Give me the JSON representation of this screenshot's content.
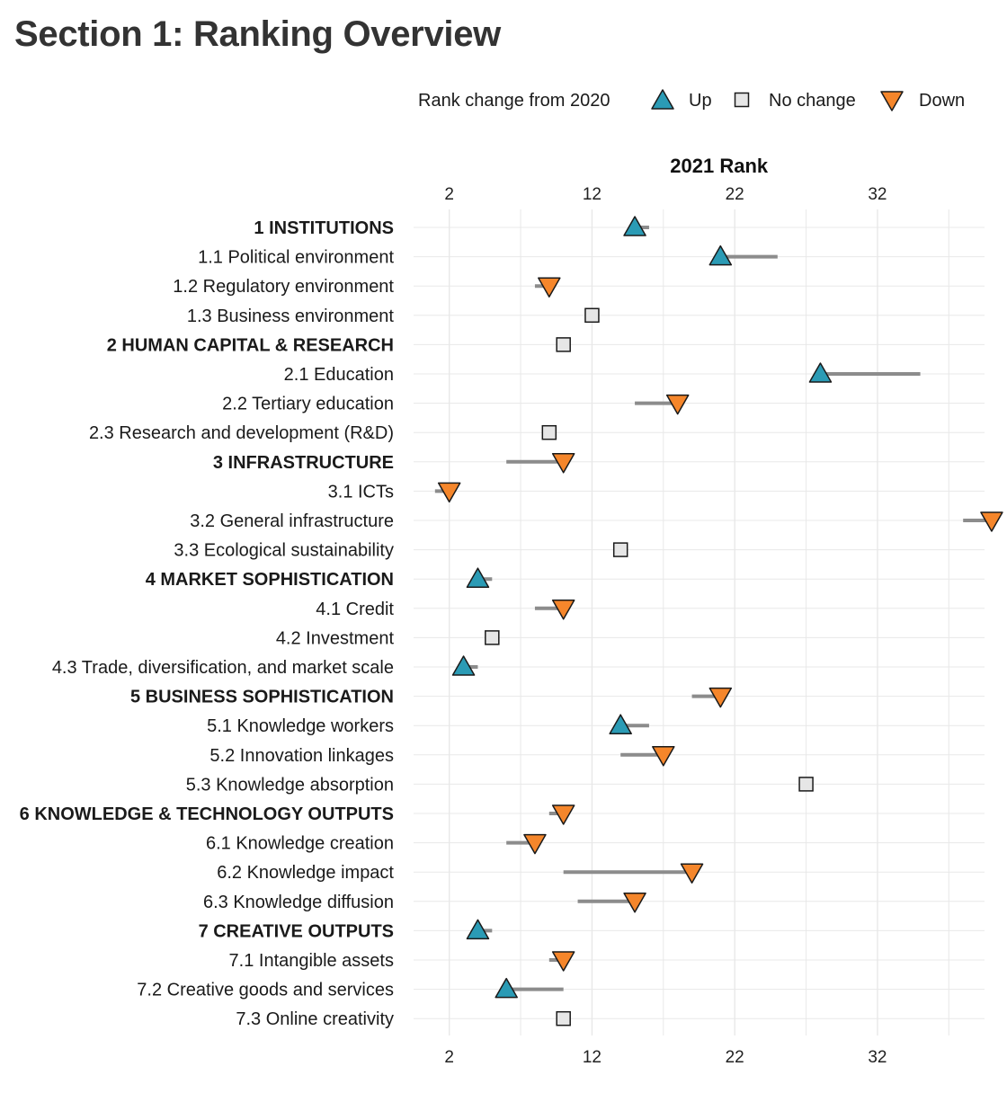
{
  "page": {
    "title": "Section 1: Ranking Overview"
  },
  "chart_data": {
    "type": "dot-arrow",
    "title": "",
    "xlabel": "2021 Rank",
    "ylabel": "",
    "xlim": [
      -0.5,
      39.5
    ],
    "x_ticks": [
      2,
      12,
      22,
      32
    ],
    "grid": true,
    "legend": {
      "position": "top-right",
      "title": "Rank change from 2020",
      "entries": [
        {
          "key": "up",
          "label": "Up",
          "color": "#2b9bb5"
        },
        {
          "key": "nochange",
          "label": "No change",
          "color": "#e6e6e6"
        },
        {
          "key": "down",
          "label": "Down",
          "color": "#f5862b"
        }
      ]
    },
    "colors": {
      "up": "#2b9bb5",
      "nochange": "#e6e6e6",
      "down": "#f5862b",
      "segment": "#8c8c8c",
      "grid": "#e8e8e8"
    },
    "rows": [
      {
        "label": "1 INSTITUTIONS",
        "pillar": true,
        "rank_2021": 15,
        "rank_2020": 16,
        "change": "up"
      },
      {
        "label": "1.1 Political environment",
        "pillar": false,
        "rank_2021": 21,
        "rank_2020": 25,
        "change": "up"
      },
      {
        "label": "1.2 Regulatory environment",
        "pillar": false,
        "rank_2021": 9,
        "rank_2020": 8,
        "change": "down"
      },
      {
        "label": "1.3 Business environment",
        "pillar": false,
        "rank_2021": 12,
        "rank_2020": 12,
        "change": "nochange"
      },
      {
        "label": "2 HUMAN CAPITAL & RESEARCH",
        "pillar": true,
        "rank_2021": 10,
        "rank_2020": 10,
        "change": "nochange"
      },
      {
        "label": "2.1 Education",
        "pillar": false,
        "rank_2021": 28,
        "rank_2020": 35,
        "change": "up"
      },
      {
        "label": "2.2 Tertiary education",
        "pillar": false,
        "rank_2021": 18,
        "rank_2020": 15,
        "change": "down"
      },
      {
        "label": "2.3 Research and development (R&D)",
        "pillar": false,
        "rank_2021": 9,
        "rank_2020": 9,
        "change": "nochange"
      },
      {
        "label": "3 INFRASTRUCTURE",
        "pillar": true,
        "rank_2021": 10,
        "rank_2020": 6,
        "change": "down"
      },
      {
        "label": "3.1 ICTs",
        "pillar": false,
        "rank_2021": 2,
        "rank_2020": 1,
        "change": "down"
      },
      {
        "label": "3.2 General infrastructure",
        "pillar": false,
        "rank_2021": 40,
        "rank_2020": 38,
        "change": "down"
      },
      {
        "label": "3.3 Ecological sustainability",
        "pillar": false,
        "rank_2021": 14,
        "rank_2020": 14,
        "change": "nochange"
      },
      {
        "label": "4 MARKET SOPHISTICATION",
        "pillar": true,
        "rank_2021": 4,
        "rank_2020": 5,
        "change": "up"
      },
      {
        "label": "4.1 Credit",
        "pillar": false,
        "rank_2021": 10,
        "rank_2020": 8,
        "change": "down"
      },
      {
        "label": "4.2 Investment",
        "pillar": false,
        "rank_2021": 5,
        "rank_2020": 5,
        "change": "nochange"
      },
      {
        "label": "4.3 Trade, diversification, and market scale",
        "pillar": false,
        "rank_2021": 3,
        "rank_2020": 4,
        "change": "up"
      },
      {
        "label": "5 BUSINESS SOPHISTICATION",
        "pillar": true,
        "rank_2021": 21,
        "rank_2020": 19,
        "change": "down"
      },
      {
        "label": "5.1 Knowledge workers",
        "pillar": false,
        "rank_2021": 14,
        "rank_2020": 16,
        "change": "up"
      },
      {
        "label": "5.2 Innovation linkages",
        "pillar": false,
        "rank_2021": 17,
        "rank_2020": 14,
        "change": "down"
      },
      {
        "label": "5.3 Knowledge absorption",
        "pillar": false,
        "rank_2021": 27,
        "rank_2020": 27,
        "change": "nochange"
      },
      {
        "label": "6 KNOWLEDGE & TECHNOLOGY OUTPUTS",
        "pillar": true,
        "rank_2021": 10,
        "rank_2020": 9,
        "change": "down"
      },
      {
        "label": "6.1 Knowledge creation",
        "pillar": false,
        "rank_2021": 8,
        "rank_2020": 6,
        "change": "down"
      },
      {
        "label": "6.2 Knowledge impact",
        "pillar": false,
        "rank_2021": 19,
        "rank_2020": 10,
        "change": "down"
      },
      {
        "label": "6.3 Knowledge diffusion",
        "pillar": false,
        "rank_2021": 15,
        "rank_2020": 11,
        "change": "down"
      },
      {
        "label": "7 CREATIVE OUTPUTS",
        "pillar": true,
        "rank_2021": 4,
        "rank_2020": 5,
        "change": "up"
      },
      {
        "label": "7.1 Intangible assets",
        "pillar": false,
        "rank_2021": 10,
        "rank_2020": 9,
        "change": "down"
      },
      {
        "label": "7.2 Creative goods and services",
        "pillar": false,
        "rank_2021": 6,
        "rank_2020": 10,
        "change": "up"
      },
      {
        "label": "7.3 Online creativity",
        "pillar": false,
        "rank_2021": 10,
        "rank_2020": 10,
        "change": "nochange"
      }
    ]
  }
}
